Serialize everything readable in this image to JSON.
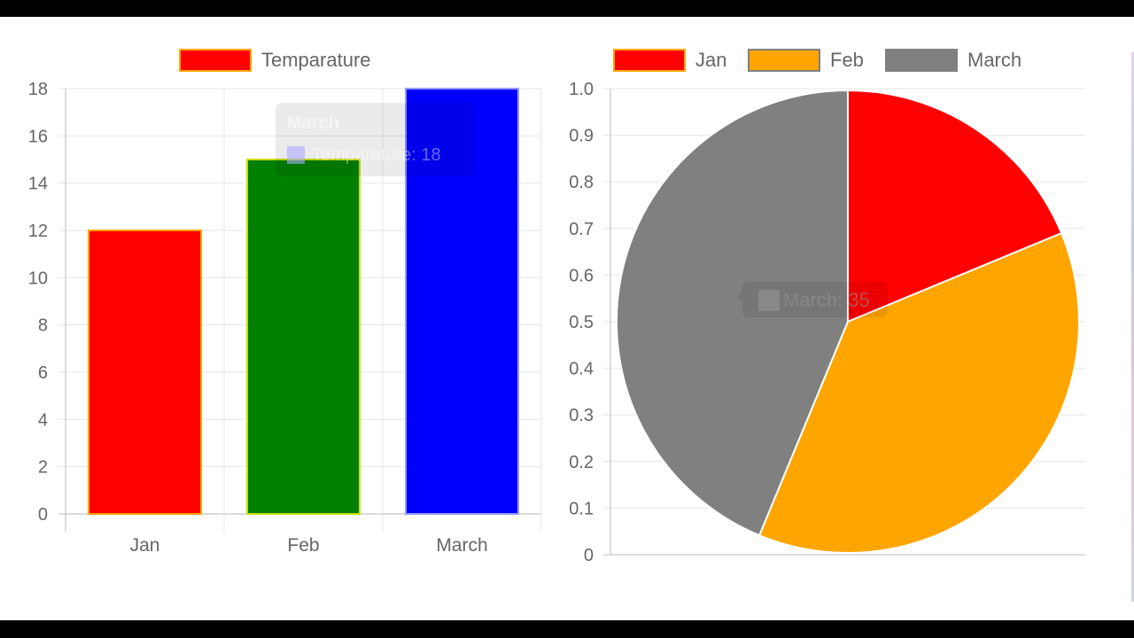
{
  "chart_data": [
    {
      "type": "bar",
      "title": "",
      "legend": [
        {
          "label": "Temparature",
          "fill": "#ff0000",
          "border": "#ffa500"
        }
      ],
      "legend_position": "top",
      "categories": [
        "Jan",
        "Feb",
        "March"
      ],
      "series": [
        {
          "name": "Temparature",
          "values": [
            12,
            15,
            18
          ]
        }
      ],
      "bar_colors": [
        "#ff0000",
        "#008000",
        "#0000ff"
      ],
      "bar_borders": [
        "#ffa500",
        "#c8e000",
        "#9999ff"
      ],
      "ylim": [
        0,
        18
      ],
      "yticks": [
        0,
        2,
        4,
        6,
        8,
        10,
        12,
        14,
        16,
        18
      ],
      "grid": true,
      "xlabel": "",
      "ylabel": "",
      "tooltip": {
        "title": "March",
        "label": "Temparature: 18"
      }
    },
    {
      "type": "pie",
      "title": "",
      "legend": [
        {
          "label": "Jan",
          "fill": "#ff0000",
          "border": "#ffa500"
        },
        {
          "label": "Feb",
          "fill": "#ffa500",
          "border": "#808080"
        },
        {
          "label": "March",
          "fill": "#808080",
          "border": "#808080"
        }
      ],
      "legend_position": "top",
      "categories": [
        "Jan",
        "Feb",
        "March"
      ],
      "values": [
        15,
        30,
        35
      ],
      "colors": [
        "#ff0000",
        "#ffa500",
        "#808080"
      ],
      "ylim": [
        0,
        1.0
      ],
      "yticks": [
        "0",
        "0.1",
        "0.2",
        "0.3",
        "0.4",
        "0.5",
        "0.6",
        "0.7",
        "0.8",
        "0.9",
        "1.0"
      ],
      "grid": true,
      "tooltip": {
        "label": "March: 35"
      }
    }
  ]
}
